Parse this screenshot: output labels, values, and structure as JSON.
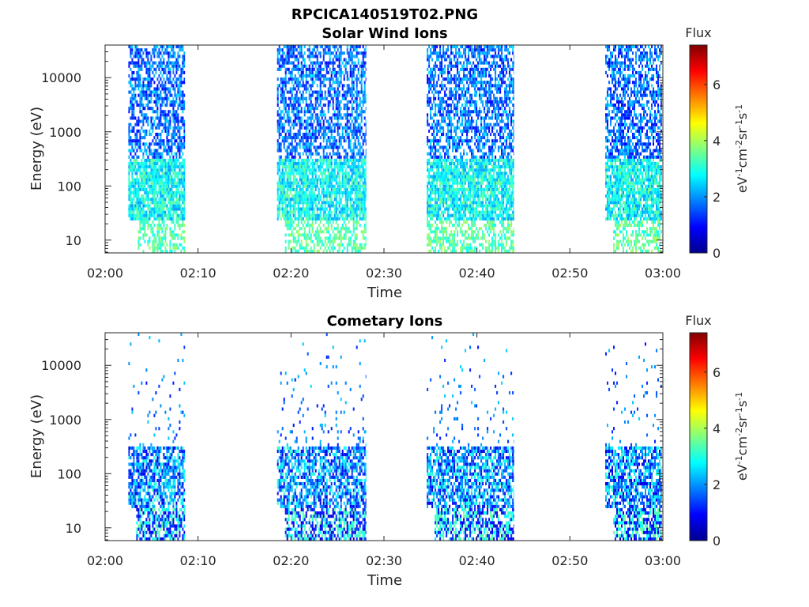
{
  "figure_title": "RPCICA140519T02.PNG",
  "colorbar": {
    "title": "Flux",
    "label_parts": [
      "eV",
      "-1",
      "cm",
      "-2",
      "sr",
      "-1",
      "s",
      "-1"
    ],
    "ticks": [
      "0",
      "2",
      "4",
      "6"
    ],
    "range": [
      0,
      7.4
    ],
    "colormap": "jet"
  },
  "chart_data": [
    {
      "type": "heatmap",
      "title": "Solar Wind Ions",
      "xlabel": "Time",
      "ylabel": "Energy (eV)",
      "x_ticks": [
        "02:00",
        "02:10",
        "02:20",
        "02:30",
        "02:40",
        "02:50",
        "03:00"
      ],
      "x_range_minutes": [
        0,
        60
      ],
      "y_ticks": [
        "10",
        "100",
        "1000",
        "10000"
      ],
      "y_scale": "log",
      "y_range": [
        5.8,
        40000
      ],
      "data_intervals_minutes": [
        [
          2.5,
          8.6
        ],
        [
          18.5,
          28.1
        ],
        [
          34.6,
          44.0
        ],
        [
          53.8,
          59.9
        ]
      ],
      "low_energy_band_ev": [
        6,
        22
      ],
      "low_energy_onset_minutes": [
        3.5,
        19.2,
        34.6,
        54.5
      ],
      "flux_character": "dense cyan/green at 10-300 eV, mixed blue/cyan noise above 300 eV up to 40 keV"
    },
    {
      "type": "heatmap",
      "title": "Cometary Ions",
      "xlabel": "Time",
      "ylabel": "Energy (eV)",
      "x_ticks": [
        "02:00",
        "02:10",
        "02:20",
        "02:30",
        "02:40",
        "02:50",
        "03:00"
      ],
      "x_range_minutes": [
        0,
        60
      ],
      "y_ticks": [
        "10",
        "100",
        "1000",
        "10000"
      ],
      "y_scale": "log",
      "y_range": [
        5.8,
        40000
      ],
      "data_intervals_minutes": [
        [
          2.5,
          8.6
        ],
        [
          18.5,
          28.1
        ],
        [
          34.6,
          44.0
        ],
        [
          53.8,
          59.9
        ]
      ],
      "low_energy_band_ev": [
        6,
        22
      ],
      "flux_character": "dense blue/cyan bands below 200 eV, sparse blue points above 300 eV"
    }
  ]
}
